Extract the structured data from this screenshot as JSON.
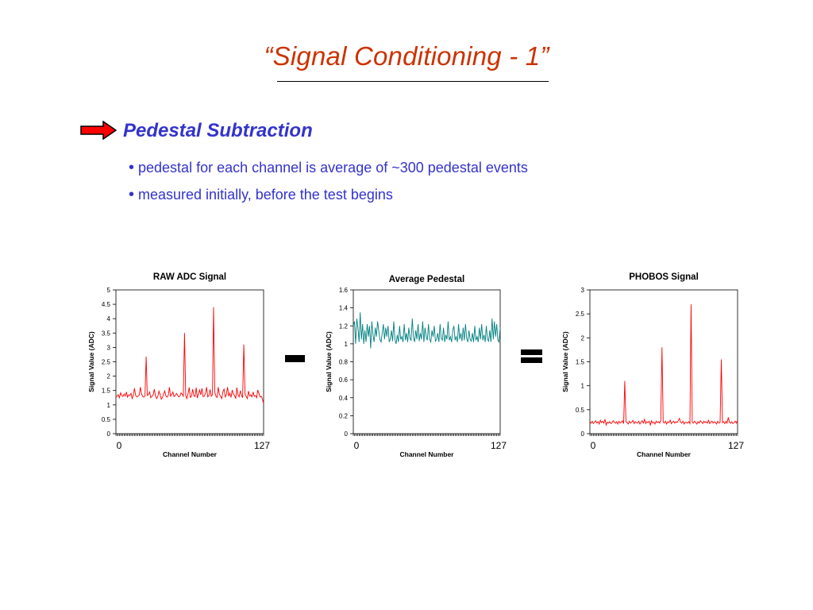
{
  "slide": {
    "title": "“Signal Conditioning - 1”",
    "heading": "Pedestal Subtraction",
    "bullets": [
      "pedestal for each channel is average of ~300 pedestal events",
      "measured initially, before the test begins"
    ],
    "minus_symbol": "-",
    "equals_symbol": "=",
    "colors": {
      "title": "#cc3300",
      "heading": "#3333cc",
      "arrow_fill": "#ff0000",
      "raw_line": "#ff0000",
      "pedestal_line": "#008080",
      "signal_line": "#ff0000"
    }
  },
  "chart_data": [
    {
      "type": "line",
      "title": "RAW ADC Signal",
      "xlabel": "Channel Number",
      "ylabel": "Signal Value (ADC)",
      "x_tick_labels": [
        "0",
        "127"
      ],
      "xlim": [
        0,
        127
      ],
      "ylim": [
        0,
        5
      ],
      "y_ticks": [
        "0",
        "0.5",
        "1",
        "1.5",
        "2",
        "2.5",
        "3",
        "3.5",
        "4",
        "4.5",
        "5"
      ],
      "series": [
        {
          "values": [
            1.28,
            1.3,
            1.36,
            1.25,
            1.42,
            1.33,
            1.29,
            1.38,
            1.31,
            1.45,
            1.27,
            1.35,
            1.33,
            1.4,
            1.22,
            1.36,
            1.58,
            1.32,
            1.28,
            1.3,
            1.34,
            1.62,
            1.39,
            1.29,
            1.27,
            1.31,
            2.68,
            1.33,
            1.36,
            1.45,
            1.25,
            1.3,
            1.35,
            1.55,
            1.32,
            1.22,
            1.29,
            1.48,
            1.36,
            1.2,
            1.26,
            1.38,
            1.49,
            1.31,
            1.27,
            1.33,
            1.62,
            1.3,
            1.36,
            1.45,
            1.29,
            1.32,
            1.4,
            1.35,
            1.28,
            1.31,
            1.42,
            1.37,
            1.3,
            3.5,
            1.34,
            1.22,
            1.38,
            1.61,
            1.26,
            1.3,
            1.55,
            1.33,
            1.29,
            1.6,
            1.24,
            1.38,
            1.52,
            1.35,
            1.58,
            1.29,
            1.3,
            1.41,
            1.62,
            1.28,
            1.33,
            1.54,
            1.3,
            1.36,
            4.4,
            1.45,
            1.3,
            1.26,
            1.62,
            1.37,
            1.3,
            1.22,
            1.45,
            1.55,
            1.28,
            1.35,
            1.62,
            1.3,
            1.41,
            1.26,
            1.52,
            1.38,
            1.33,
            1.22,
            1.6,
            1.35,
            1.28,
            1.5,
            1.33,
            1.25,
            3.1,
            1.38,
            1.3,
            1.22,
            1.48,
            1.31,
            1.35,
            1.28,
            1.45,
            1.3,
            1.33,
            1.25,
            1.52,
            1.4,
            1.28,
            1.3,
            1.2,
            1.05
          ]
        }
      ]
    },
    {
      "type": "line",
      "title": "Average Pedestal",
      "xlabel": "Channel Number",
      "ylabel": "Signal Value (ADC)",
      "x_tick_labels": [
        "0",
        "127"
      ],
      "xlim": [
        0,
        127
      ],
      "ylim": [
        0,
        1.6
      ],
      "y_ticks": [
        "0",
        "0.2",
        "0.4",
        "0.6",
        "0.8",
        "1",
        "1.2",
        "1.4",
        "1.6"
      ],
      "series": [
        {
          "values": [
            1.2,
            1.25,
            1.0,
            1.28,
            1.18,
            1.02,
            1.35,
            1.05,
            1.22,
            1.0,
            1.15,
            1.02,
            1.22,
            1.08,
            1.2,
            0.95,
            1.25,
            1.1,
            1.02,
            1.18,
            1.08,
            1.25,
            1.15,
            1.05,
            1.02,
            1.12,
            1.22,
            1.05,
            1.18,
            1.08,
            1.2,
            1.02,
            1.05,
            1.15,
            1.03,
            1.25,
            1.05,
            1.0,
            1.1,
            1.02,
            1.2,
            1.05,
            1.08,
            1.02,
            1.22,
            1.04,
            1.12,
            1.02,
            1.18,
            1.06,
            1.04,
            1.28,
            1.08,
            1.02,
            1.15,
            1.05,
            1.22,
            1.03,
            1.12,
            1.05,
            1.25,
            1.02,
            1.18,
            1.08,
            1.04,
            1.22,
            1.05,
            1.02,
            1.15,
            1.08,
            1.2,
            1.03,
            1.05,
            1.12,
            1.02,
            1.22,
            1.06,
            1.04,
            1.18,
            1.02,
            1.1,
            1.05,
            1.25,
            1.04,
            1.08,
            1.02,
            1.15,
            1.2,
            1.04,
            1.08,
            1.02,
            1.22,
            1.05,
            1.12,
            1.03,
            1.18,
            1.04,
            1.22,
            1.06,
            1.02,
            1.15,
            1.05,
            1.03,
            1.12,
            1.02,
            1.2,
            1.04,
            1.08,
            1.02,
            1.18,
            1.05,
            1.22,
            1.04,
            1.1,
            1.02,
            1.2,
            1.05,
            1.03,
            1.15,
            1.02,
            1.28,
            1.05,
            1.25,
            1.08,
            1.22,
            1.04,
            1.02,
            1.18
          ]
        }
      ]
    },
    {
      "type": "line",
      "title": "PHOBOS Signal",
      "xlabel": "Channel Number",
      "ylabel": "Signal Value (ADC)",
      "x_tick_labels": [
        "0",
        "127"
      ],
      "xlim": [
        0,
        127
      ],
      "ylim": [
        0,
        3
      ],
      "y_ticks": [
        "0",
        "0.5",
        "1",
        "1.5",
        "2",
        "2.5",
        "3"
      ],
      "series": [
        {
          "values": [
            0.25,
            0.22,
            0.26,
            0.21,
            0.24,
            0.27,
            0.22,
            0.25,
            0.2,
            0.28,
            0.23,
            0.26,
            0.22,
            0.3,
            0.18,
            0.24,
            0.22,
            0.25,
            0.21,
            0.23,
            0.27,
            0.24,
            0.22,
            0.25,
            0.2,
            0.26,
            0.22,
            0.24,
            0.27,
            0.21,
            1.1,
            0.25,
            0.23,
            0.2,
            0.26,
            0.22,
            0.24,
            0.28,
            0.21,
            0.25,
            0.23,
            0.22,
            0.26,
            0.2,
            0.24,
            0.27,
            0.22,
            0.3,
            0.21,
            0.25,
            0.23,
            0.26,
            0.18,
            0.27,
            0.22,
            0.24,
            0.2,
            0.26,
            0.23,
            0.25,
            0.22,
            0.28,
            1.8,
            0.24,
            0.22,
            0.26,
            0.2,
            0.25,
            0.23,
            0.28,
            0.21,
            0.24,
            0.26,
            0.22,
            0.25,
            0.23,
            0.27,
            0.32,
            0.24,
            0.22,
            0.26,
            0.2,
            0.24,
            0.23,
            0.22,
            0.25,
            0.21,
            2.7,
            0.24,
            0.22,
            0.26,
            0.23,
            0.2,
            0.25,
            0.22,
            0.27,
            0.24,
            0.21,
            0.26,
            0.23,
            0.25,
            0.22,
            0.28,
            0.21,
            0.24,
            0.26,
            0.22,
            0.25,
            0.23,
            0.2,
            0.26,
            0.22,
            0.24,
            1.55,
            0.23,
            0.25,
            0.21,
            0.26,
            0.22,
            0.34,
            0.24,
            0.22,
            0.25,
            0.21,
            0.23,
            0.26,
            0.22,
            0.28
          ]
        }
      ]
    }
  ]
}
